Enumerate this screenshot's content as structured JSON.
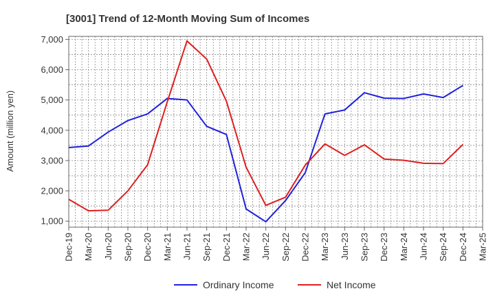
{
  "chart_data": {
    "type": "line",
    "title": "[3001]  Trend of 12-Month Moving Sum of Incomes",
    "xlabel": "",
    "ylabel": "Amount (million yen)",
    "ylim": [
      800,
      7100
    ],
    "yticks": [
      1000,
      2000,
      3000,
      4000,
      5000,
      6000,
      7000
    ],
    "ytick_labels": [
      "1,000",
      "2,000",
      "3,000",
      "4,000",
      "5,000",
      "6,000",
      "7,000"
    ],
    "x": [
      "Dec-19",
      "Mar-20",
      "Jun-20",
      "Sep-20",
      "Dec-20",
      "Mar-21",
      "Jun-21",
      "Sep-21",
      "Dec-21",
      "Mar-22",
      "Jun-22",
      "Sep-22",
      "Dec-22",
      "Mar-23",
      "Jun-23",
      "Sep-23",
      "Dec-23",
      "Mar-24",
      "Jun-24",
      "Sep-24",
      "Dec-24",
      "Mar-25"
    ],
    "grid": true,
    "legend": "bottom",
    "series": [
      {
        "name": "Ordinary Income",
        "color": "#1f1fdd",
        "values": [
          3430,
          3480,
          3940,
          4320,
          4540,
          5050,
          5000,
          4130,
          3860,
          1400,
          980,
          1680,
          2600,
          4540,
          4670,
          5240,
          5060,
          5050,
          5200,
          5080,
          5480,
          null
        ]
      },
      {
        "name": "Net Income",
        "color": "#dd1f1f",
        "values": [
          1720,
          1340,
          1360,
          2000,
          2860,
          4940,
          6950,
          6350,
          4960,
          2780,
          1520,
          1790,
          2850,
          3550,
          3170,
          3520,
          3050,
          3010,
          2910,
          2900,
          3530,
          null
        ]
      }
    ]
  }
}
